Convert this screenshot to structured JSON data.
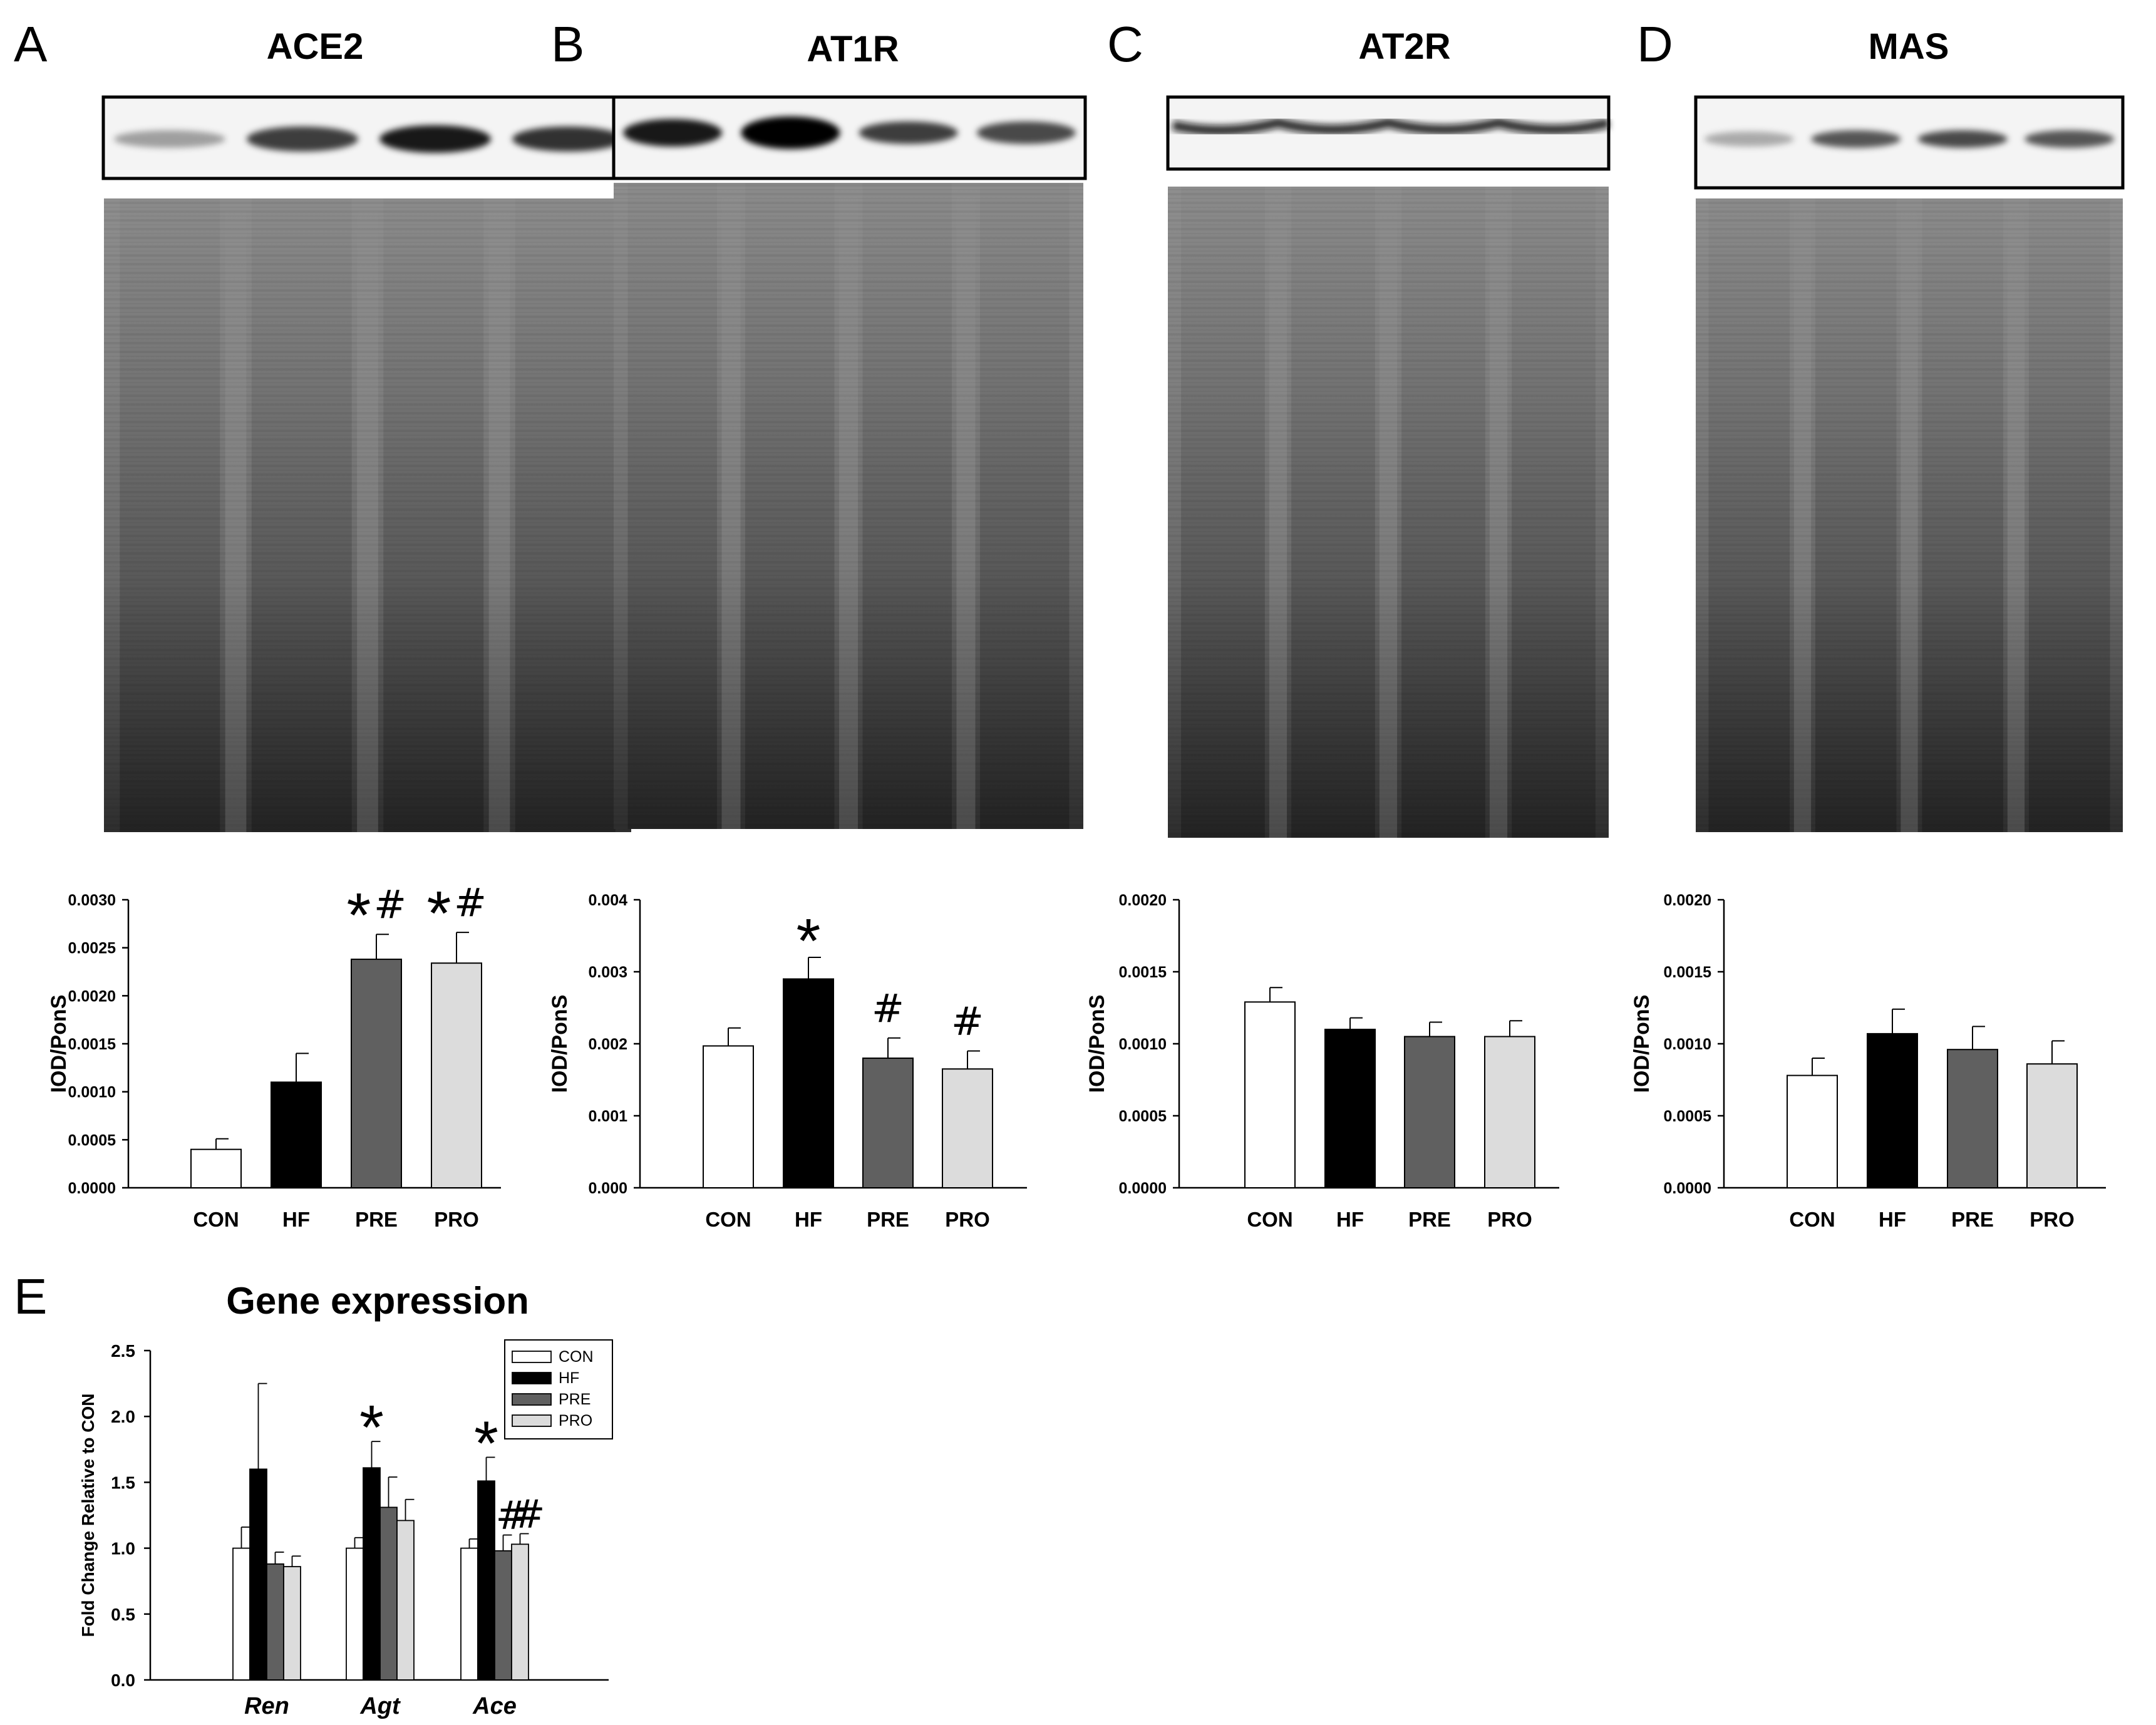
{
  "figure": {
    "panels": [
      {
        "letter": "A",
        "title": "ACE2"
      },
      {
        "letter": "B",
        "title": "AT1R"
      },
      {
        "letter": "C",
        "title": "AT2R"
      },
      {
        "letter": "D",
        "title": "MAS"
      },
      {
        "letter": "E",
        "title": "Gene expression"
      }
    ]
  },
  "colors": {
    "CON": "#ffffff",
    "HF": "#000000",
    "PRE": "#606060",
    "PRO": "#dcdcdc"
  },
  "chart_data": [
    {
      "type": "bar",
      "panel": "A",
      "categories": [
        "CON",
        "HF",
        "PRE",
        "PRO"
      ],
      "values": [
        0.0004,
        0.0011,
        0.00238,
        0.00234
      ],
      "errors": [
        0.00011,
        0.0003,
        0.00026,
        0.00032
      ],
      "ylabel": "IOD/PonS",
      "ylim": [
        0,
        0.003
      ],
      "yticks": [
        "0.0000",
        "0.0005",
        "0.0010",
        "0.0015",
        "0.0020",
        "0.0025",
        "0.0030"
      ],
      "annotations": [
        "",
        "",
        "*#",
        "*#"
      ]
    },
    {
      "type": "bar",
      "panel": "B",
      "categories": [
        "CON",
        "HF",
        "PRE",
        "PRO"
      ],
      "values": [
        0.00197,
        0.0029,
        0.0018,
        0.00165
      ],
      "errors": [
        0.00025,
        0.0003,
        0.00028,
        0.00025
      ],
      "ylabel": "IOD/PonS",
      "ylim": [
        0,
        0.004
      ],
      "yticks": [
        "0.000",
        "0.001",
        "0.002",
        "0.003",
        "0.004"
      ],
      "annotations": [
        "",
        "*",
        "#",
        "#"
      ]
    },
    {
      "type": "bar",
      "panel": "C",
      "categories": [
        "CON",
        "HF",
        "PRE",
        "PRO"
      ],
      "values": [
        0.00129,
        0.0011,
        0.00105,
        0.00105
      ],
      "errors": [
        0.0001,
        8e-05,
        0.0001,
        0.00011
      ],
      "ylabel": "IOD/PonS",
      "ylim": [
        0,
        0.002
      ],
      "yticks": [
        "0.0000",
        "0.0005",
        "0.0010",
        "0.0015",
        "0.0020"
      ],
      "annotations": [
        "",
        "",
        "",
        ""
      ]
    },
    {
      "type": "bar",
      "panel": "D",
      "categories": [
        "CON",
        "HF",
        "PRE",
        "PRO"
      ],
      "values": [
        0.00078,
        0.00107,
        0.00096,
        0.00086
      ],
      "errors": [
        0.00012,
        0.00017,
        0.00016,
        0.00016
      ],
      "ylabel": "IOD/PonS",
      "ylim": [
        0,
        0.002
      ],
      "yticks": [
        "0.0000",
        "0.0005",
        "0.0010",
        "0.0015",
        "0.0020"
      ],
      "annotations": [
        "",
        "",
        "",
        ""
      ]
    },
    {
      "type": "bar",
      "panel": "E",
      "categories": [
        "Ren",
        "Agt",
        "Ace"
      ],
      "series": [
        {
          "name": "CON",
          "values": [
            1.0,
            1.0,
            1.0
          ],
          "errors": [
            0.16,
            0.08,
            0.07
          ]
        },
        {
          "name": "HF",
          "values": [
            1.6,
            1.61,
            1.51
          ],
          "errors": [
            0.65,
            0.2,
            0.18
          ]
        },
        {
          "name": "PRE",
          "values": [
            0.88,
            1.31,
            0.98
          ],
          "errors": [
            0.09,
            0.23,
            0.12
          ]
        },
        {
          "name": "PRO",
          "values": [
            0.86,
            1.21,
            1.03
          ],
          "errors": [
            0.08,
            0.16,
            0.08
          ]
        }
      ],
      "ylabel": "Fold Change Relative to CON",
      "ylim": [
        0,
        2.5
      ],
      "yticks": [
        "0.0",
        "0.5",
        "1.0",
        "1.5",
        "2.0",
        "2.5"
      ],
      "legend": "top-right",
      "annotations": {
        "Agt": {
          "HF": "*"
        },
        "Ace": {
          "HF": "*",
          "PRE": "#",
          "PRO": "#"
        }
      }
    }
  ]
}
